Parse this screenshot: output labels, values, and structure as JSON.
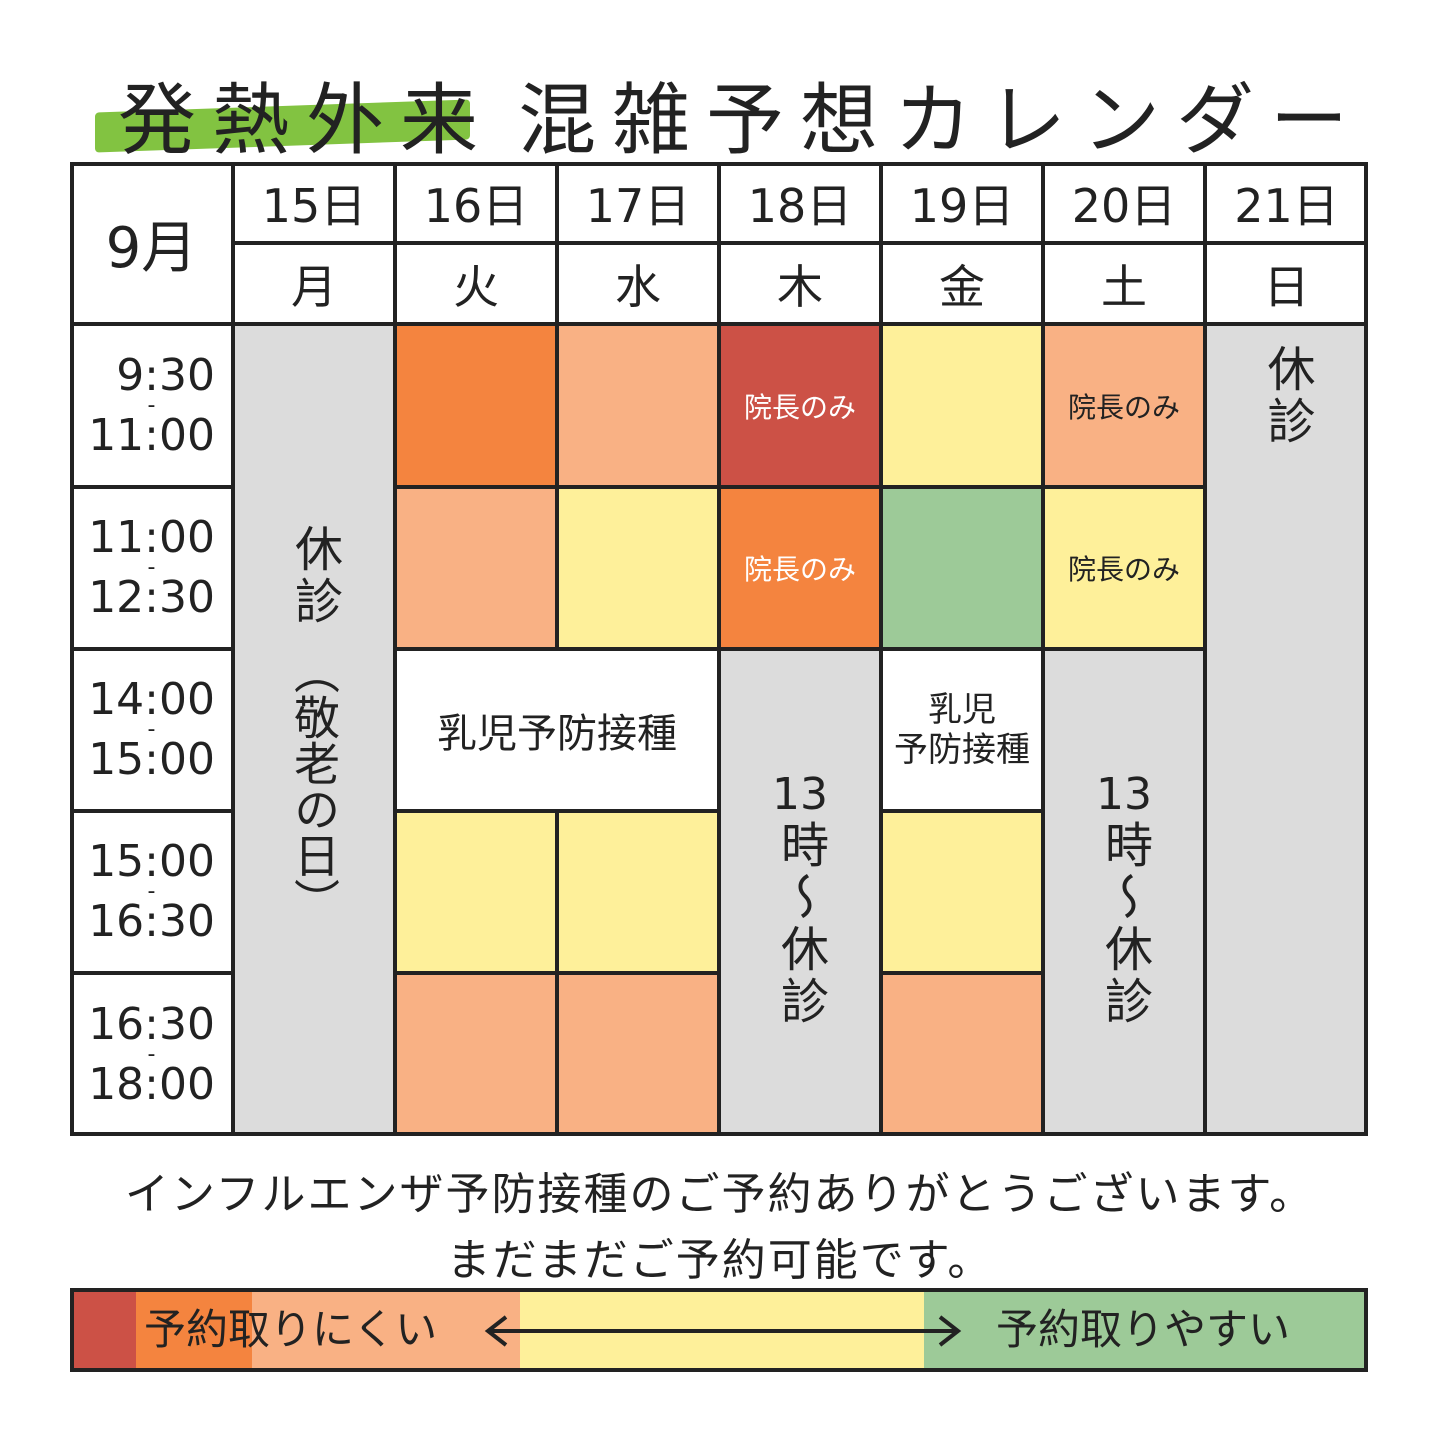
{
  "title": {
    "part1": "発熱外来",
    "part2": "混雑予想カレンダー"
  },
  "colors": {
    "very_busy": "#cc5146",
    "busy": "#f4843f",
    "moderate_busy": "#f9b184",
    "normal": "#fef09a",
    "easy": "#9dca98",
    "closed": "#dcdcdc",
    "line": "#222222",
    "title_highlight": "#82c341"
  },
  "calendar": {
    "month": "9月",
    "days": [
      {
        "date": "15日",
        "weekday": "月"
      },
      {
        "date": "16日",
        "weekday": "火"
      },
      {
        "date": "17日",
        "weekday": "水"
      },
      {
        "date": "18日",
        "weekday": "木"
      },
      {
        "date": "19日",
        "weekday": "金"
      },
      {
        "date": "20日",
        "weekday": "土"
      },
      {
        "date": "21日",
        "weekday": "日"
      }
    ],
    "slots": [
      {
        "start": "9:30",
        "sep": "-",
        "end": "11:00"
      },
      {
        "start": "11:00",
        "sep": "-",
        "end": "12:30"
      },
      {
        "start": "14:00",
        "sep": "-",
        "end": "15:00"
      },
      {
        "start": "15:00",
        "sep": "-",
        "end": "16:30"
      },
      {
        "start": "16:30",
        "sep": "-",
        "end": "18:00"
      }
    ],
    "mon_closed": "休診",
    "mon_holiday": "（敬老の日）",
    "sun_closed": "休診",
    "thu_closed_line1": "13",
    "thu_closed_line2": "時〜休診",
    "sat_closed_line1": "13",
    "sat_closed_line2": "時〜休診",
    "director_only": "院長のみ",
    "vaccine_wide": "乳児予防接種",
    "vaccine_fri_line1": "乳児",
    "vaccine_fri_line2": "予防接種"
  },
  "footer": {
    "line1": "インフルエンザ予防接種のご予約ありがとうございます。",
    "line2": "まだまだご予約可能です。"
  },
  "legend": {
    "hard": "予約取りにくい",
    "arrow": "←——————————→",
    "easy": "予約取りやすい"
  }
}
